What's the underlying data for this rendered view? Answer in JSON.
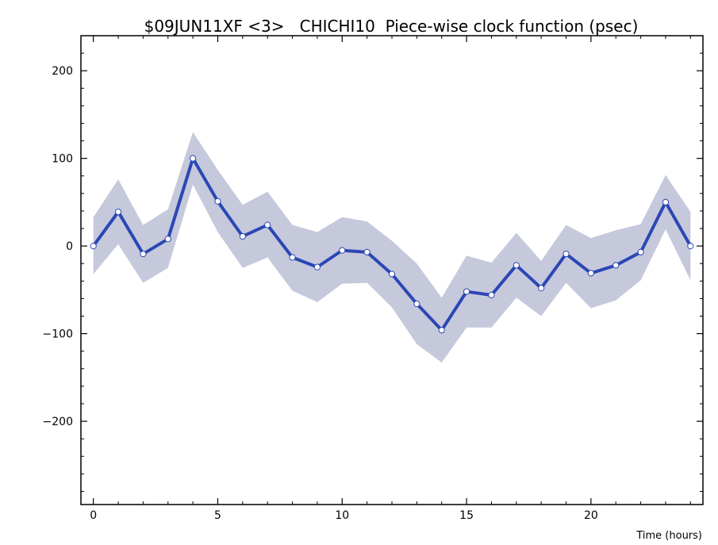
{
  "chart_data": {
    "type": "line",
    "title": "$09JUN11XF <3>   CHICHI10  Piece-wise clock function (psec)",
    "xlabel": "Time (hours)",
    "ylabel": "",
    "xlim": [
      -0.5,
      24.5
    ],
    "ylim": [
      -295,
      240
    ],
    "x_ticks": [
      0,
      5,
      10,
      15,
      20
    ],
    "y_ticks": [
      -200,
      -100,
      0,
      100,
      200
    ],
    "x_tick_labels": [
      "0",
      "5",
      "10",
      "15",
      "20"
    ],
    "y_tick_labels": [
      "−200",
      "−100",
      "0",
      "100",
      "200"
    ],
    "grid": false,
    "colors": {
      "line": "#2b47b5",
      "band": "#c6c9dc",
      "marker_fill": "#ffffff"
    },
    "series": [
      {
        "x": [
          0,
          1,
          2,
          3,
          4,
          5,
          6,
          7,
          8,
          9,
          10,
          11,
          12,
          13,
          14,
          15,
          16,
          17,
          18,
          19,
          20,
          21,
          22,
          23,
          24
        ],
        "y": [
          0,
          39,
          -9,
          8,
          100,
          51,
          11,
          24,
          -13,
          -24,
          -5,
          -7,
          -32,
          -66,
          -96,
          -52,
          -56,
          -22,
          -48,
          -9,
          -31,
          -22,
          -7,
          50,
          0
        ],
        "upper": [
          33,
          76,
          24,
          42,
          130,
          87,
          47,
          62,
          24,
          16,
          33,
          28,
          6,
          -20,
          -59,
          -11,
          -19,
          15,
          -17,
          24,
          9,
          18,
          25,
          81,
          39
        ],
        "lower": [
          -32,
          2,
          -42,
          -25,
          70,
          16,
          -25,
          -13,
          -51,
          -64,
          -43,
          -42,
          -70,
          -112,
          -133,
          -93,
          -93,
          -59,
          -80,
          -42,
          -71,
          -62,
          -39,
          19,
          -39
        ]
      }
    ]
  }
}
